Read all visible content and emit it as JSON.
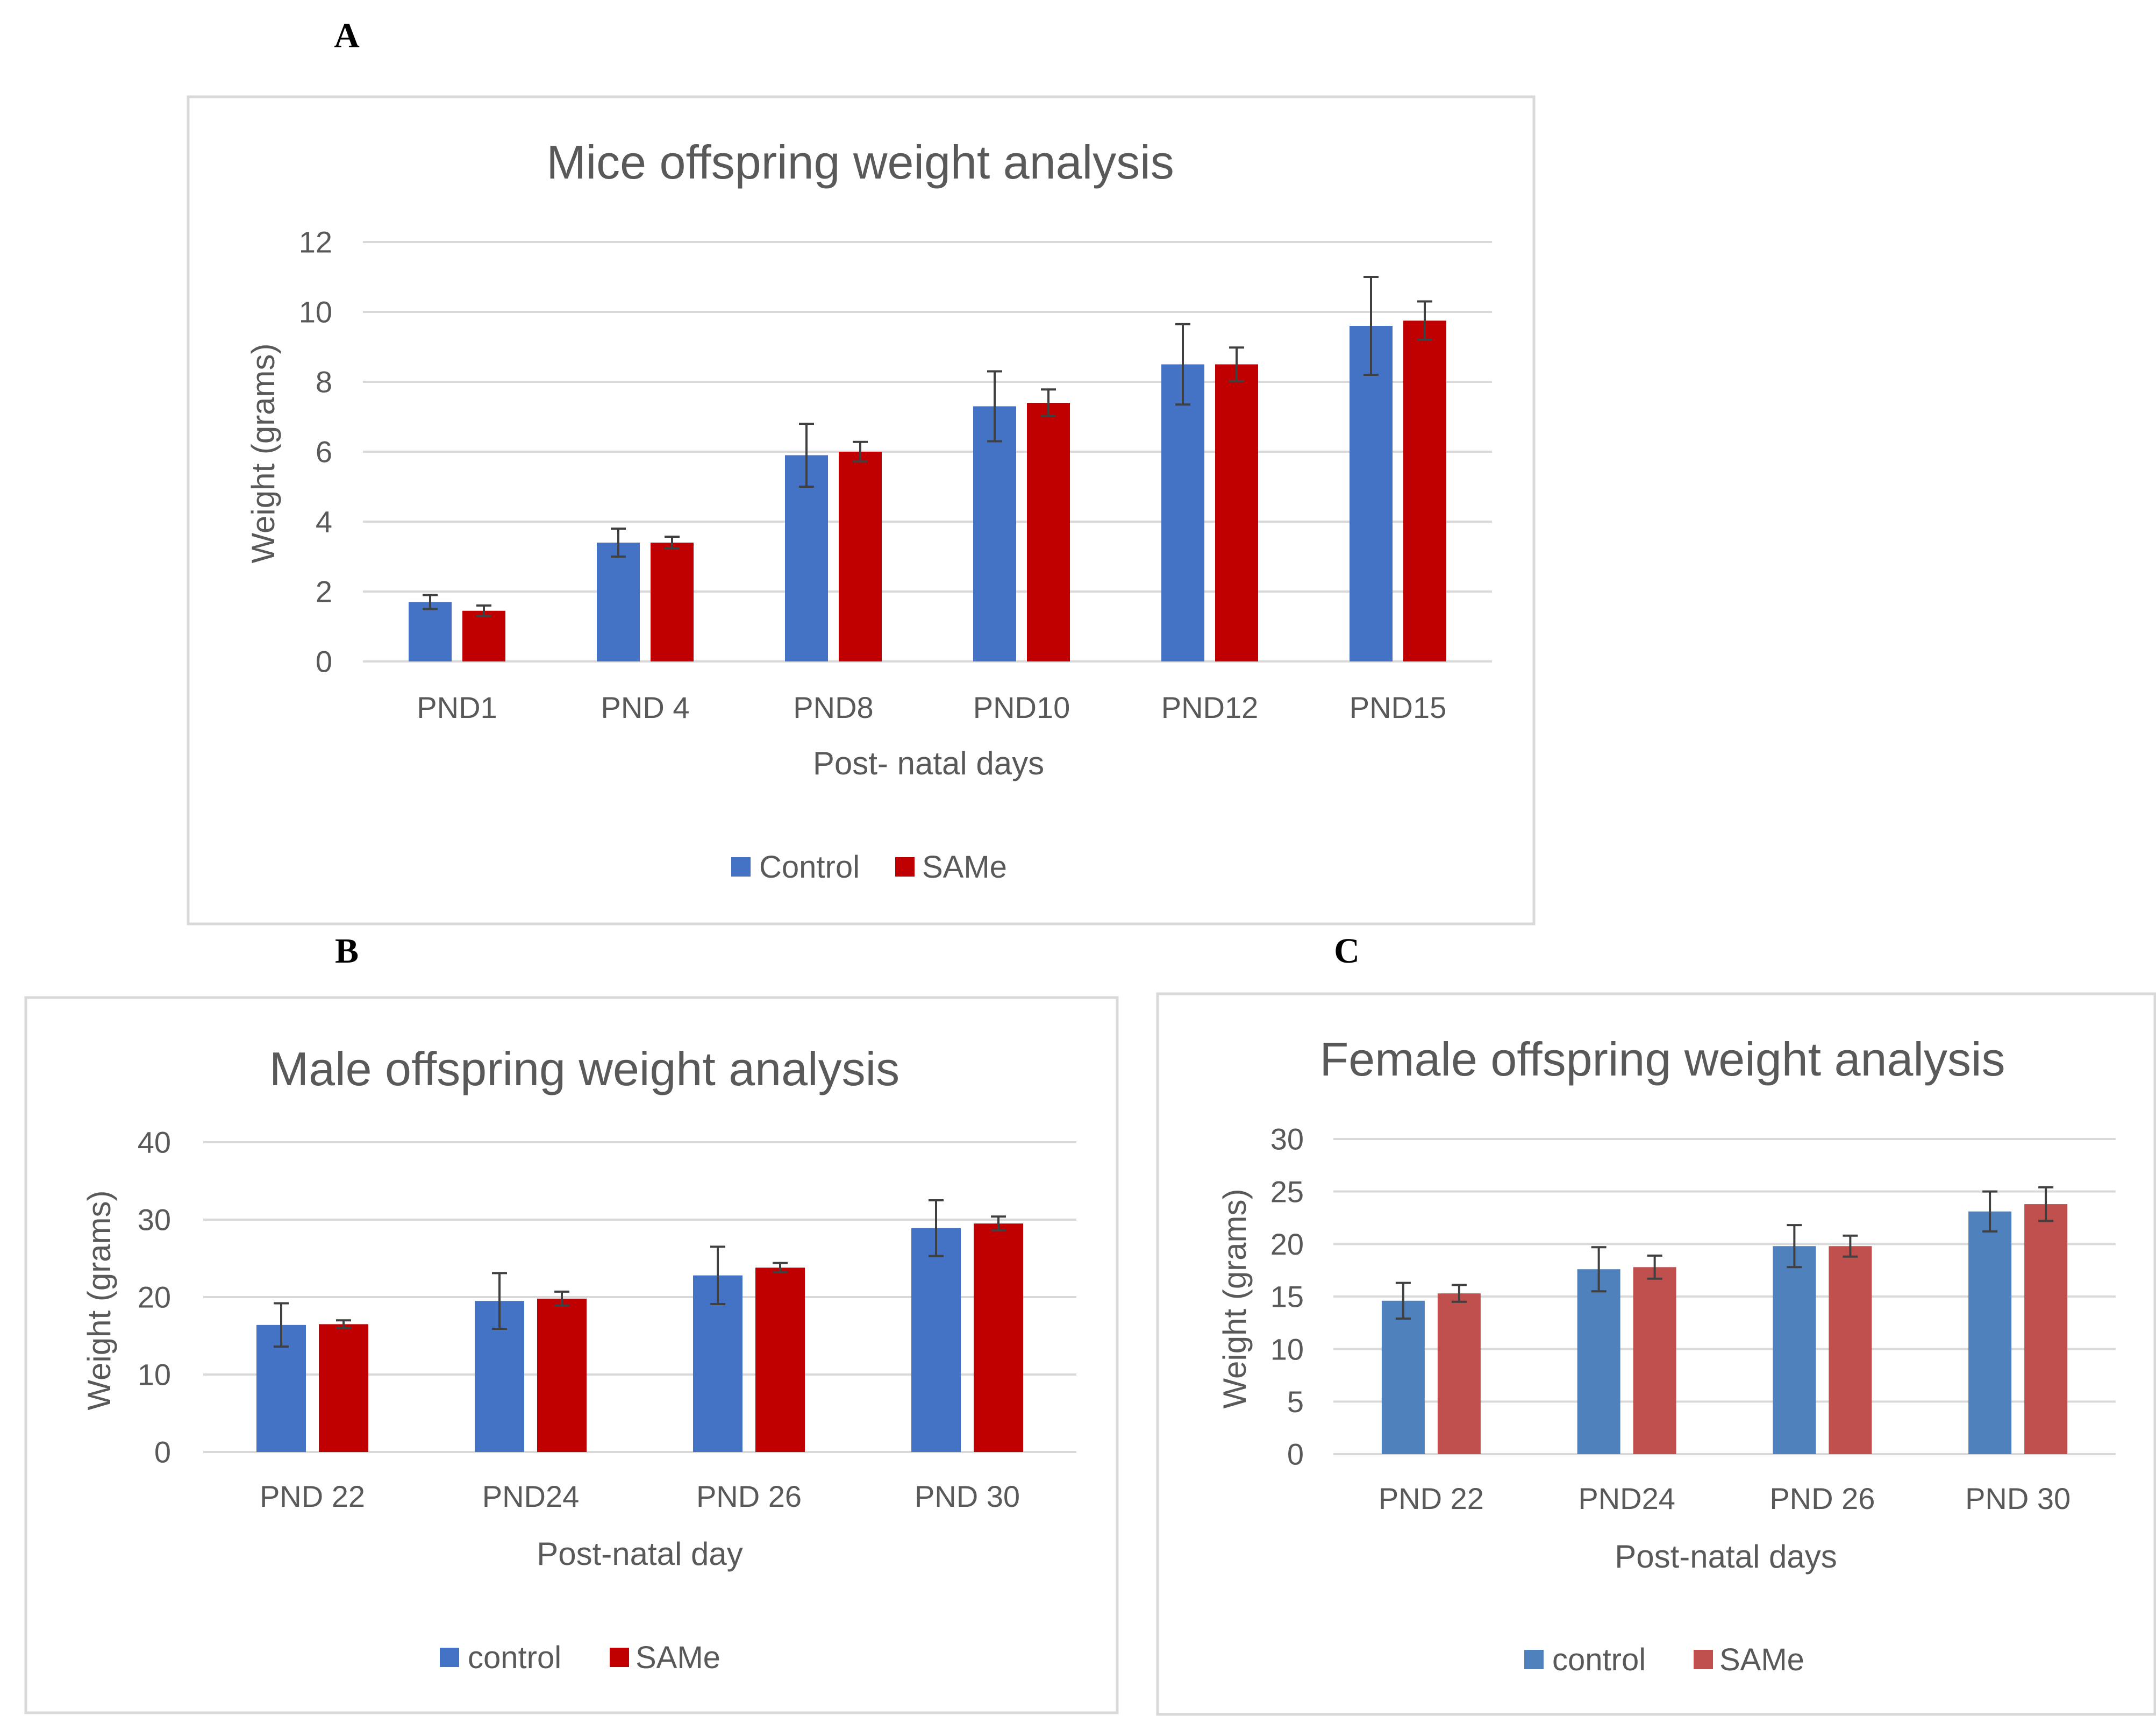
{
  "chart_data": [
    {
      "panel": "A",
      "type": "bar",
      "title": "Mice offspring weight analysis",
      "xlabel": "Post- natal days",
      "ylabel": "Weight (grams)",
      "categories": [
        "PND1",
        "PND 4",
        "PND8",
        "PND10",
        "PND12",
        "PND15"
      ],
      "ylim": [
        0,
        12
      ],
      "yticks": [
        "0",
        "2",
        "4",
        "6",
        "8",
        "10",
        "12"
      ],
      "grid": true,
      "legend_position": "bottom",
      "series": [
        {
          "name": "Control",
          "color": "#4472c4",
          "values": [
            1.7,
            3.4,
            5.9,
            7.3,
            8.5,
            9.6
          ],
          "errors": [
            0.2,
            0.4,
            0.9,
            1.0,
            1.15,
            1.4
          ]
        },
        {
          "name": "SAMe",
          "color": "#c00000",
          "values": [
            1.45,
            3.4,
            6.0,
            7.4,
            8.5,
            9.75
          ],
          "errors": [
            0.15,
            0.17,
            0.28,
            0.38,
            0.48,
            0.55
          ]
        }
      ]
    },
    {
      "panel": "B",
      "type": "bar",
      "title": "Male offspring weight analysis",
      "xlabel": "Post-natal day",
      "ylabel": "Weight (grams)",
      "categories": [
        "PND 22",
        "PND24",
        "PND 26",
        "PND 30"
      ],
      "ylim": [
        0,
        40
      ],
      "yticks": [
        "0",
        "10",
        "20",
        "30",
        "40"
      ],
      "grid": true,
      "legend_position": "bottom",
      "series": [
        {
          "name": "control",
          "color": "#4472c4",
          "values": [
            16.4,
            19.5,
            22.8,
            28.9
          ],
          "errors": [
            2.8,
            3.6,
            3.7,
            3.6
          ]
        },
        {
          "name": "SAMe",
          "color": "#c00000",
          "values": [
            16.5,
            19.8,
            23.8,
            29.5
          ],
          "errors": [
            0.5,
            0.9,
            0.6,
            0.9
          ]
        }
      ]
    },
    {
      "panel": "C",
      "type": "bar",
      "title": "Female offspring weight analysis",
      "xlabel": "Post-natal days",
      "ylabel": "Weight (grams)",
      "categories": [
        "PND 22",
        "PND24",
        "PND 26",
        "PND 30"
      ],
      "ylim": [
        0,
        30
      ],
      "yticks": [
        "0",
        "5",
        "10",
        "15",
        "20",
        "25",
        "30"
      ],
      "grid": true,
      "legend_position": "bottom",
      "series": [
        {
          "name": "control",
          "color": "#4f81bd",
          "values": [
            14.6,
            17.6,
            19.8,
            23.1
          ],
          "errors": [
            1.7,
            2.1,
            2.0,
            1.9
          ]
        },
        {
          "name": "SAMe",
          "color": "#c0504d",
          "values": [
            15.3,
            17.8,
            19.8,
            23.8
          ],
          "errors": [
            0.8,
            1.1,
            1.0,
            1.6
          ]
        }
      ]
    }
  ]
}
